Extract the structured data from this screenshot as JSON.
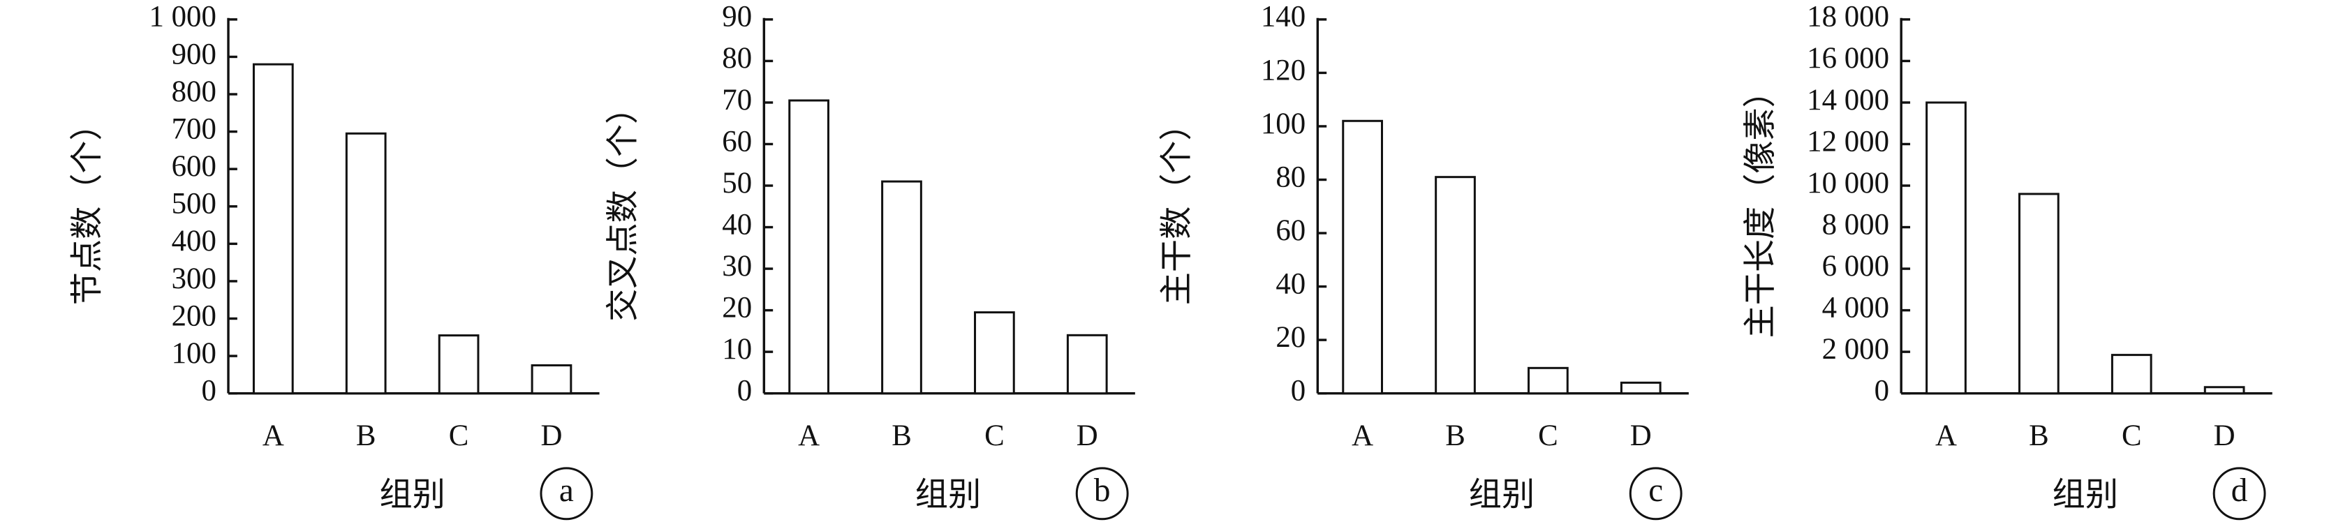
{
  "chart_data": [
    {
      "type": "bar",
      "panel": "a",
      "ylabel": "节点数（个）",
      "xlabel": "组别",
      "color": "#ffffff",
      "categories": [
        "A",
        "B",
        "C",
        "D"
      ],
      "values": [
        880,
        695,
        155,
        75
      ],
      "ylim": [
        0,
        1000
      ],
      "yticks": [
        0,
        100,
        200,
        300,
        400,
        500,
        600,
        700,
        800,
        900,
        {
          "value": 1000,
          "label": "1 000"
        }
      ]
    },
    {
      "type": "bar",
      "panel": "b",
      "ylabel": "交叉点数（个）",
      "xlabel": "组别",
      "color": "#ffffff",
      "categories": [
        "A",
        "B",
        "C",
        "D"
      ],
      "values": [
        70.5,
        51,
        19.5,
        14
      ],
      "ylim": [
        0,
        90
      ],
      "yticks": [
        0,
        10,
        20,
        30,
        40,
        50,
        60,
        70,
        80,
        90
      ]
    },
    {
      "type": "bar",
      "panel": "c",
      "ylabel": "主干数（个）",
      "xlabel": "组别",
      "color": "#ffffff",
      "categories": [
        "A",
        "B",
        "C",
        "D"
      ],
      "values": [
        102,
        81,
        9.5,
        4
      ],
      "ylim": [
        0,
        140
      ],
      "yticks": [
        0,
        20,
        40,
        60,
        80,
        100,
        120,
        140
      ]
    },
    {
      "type": "bar",
      "panel": "d",
      "ylabel": "主干长度（像素）",
      "xlabel": "组别",
      "color": "#ffffff",
      "categories": [
        "A",
        "B",
        "C",
        "D"
      ],
      "values": [
        14000,
        9600,
        1850,
        300
      ],
      "ylim": [
        0,
        18000
      ],
      "yticks": [
        0,
        {
          "value": 2000,
          "label": "2 000"
        },
        {
          "value": 4000,
          "label": "4 000"
        },
        {
          "value": 6000,
          "label": "6 000"
        },
        {
          "value": 8000,
          "label": "8 000"
        },
        {
          "value": 10000,
          "label": "10 000"
        },
        {
          "value": 12000,
          "label": "12 000"
        },
        {
          "value": 14000,
          "label": "14 000"
        },
        {
          "value": 16000,
          "label": "16 000"
        },
        {
          "value": 18000,
          "label": "18 000"
        }
      ]
    }
  ]
}
